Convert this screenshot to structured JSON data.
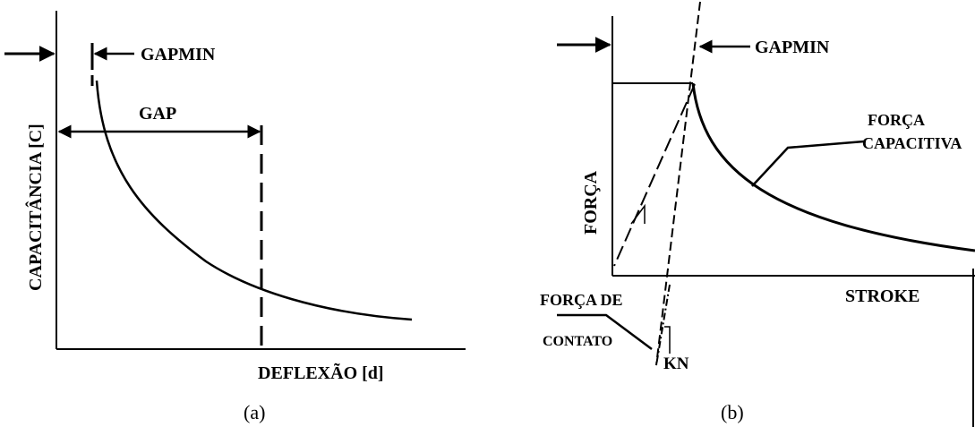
{
  "panel_a": {
    "label_gapmin": "GAPMIN",
    "label_gap": "GAP",
    "y_axis_label": "CAPACITÂNCIA [C]",
    "x_axis_label": "DEFLEXÃO [d]",
    "caption": "(a)"
  },
  "panel_b": {
    "label_gapmin": "GAPMIN",
    "label_forca_capacitiva_line1": "FORÇA",
    "label_forca_capacitiva_line2": "CAPACITIVA",
    "y_axis_label": "FORÇA",
    "x_axis_label": "STROKE",
    "label_forca_contato_line1": "FORÇA DE",
    "label_forca_contato_line2": "CONTATO",
    "label_kn": "KN",
    "caption": "(b)"
  },
  "colors": {
    "ink": "#000000",
    "background": "#ffffff"
  }
}
